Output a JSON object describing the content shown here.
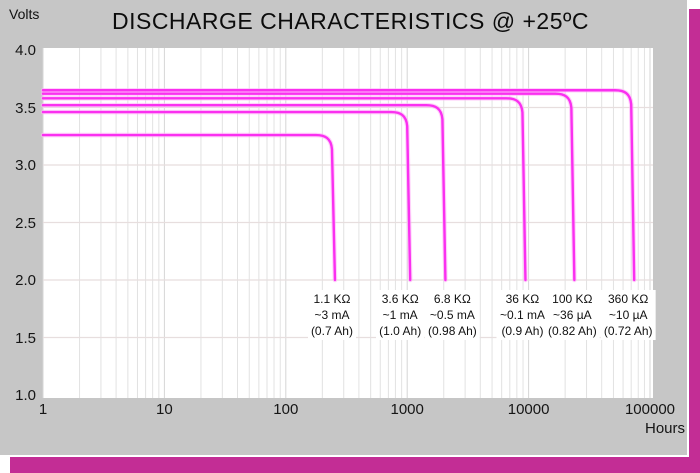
{
  "panel": {
    "bg": "#c6c6c6",
    "shadow_color": "#c32d95"
  },
  "title": "DISCHARGE CHARACTERISTICS @ +25ºC",
  "y_axis_label": "Volts",
  "x_axis_label": "Hours",
  "chart_data": {
    "type": "line",
    "title": "DISCHARGE CHARACTERISTICS @ +25ºC",
    "xlabel": "Hours",
    "ylabel": "Volts",
    "x_scale": "log",
    "xlim": [
      1,
      100000
    ],
    "ylim": [
      1.0,
      4.0
    ],
    "grid": true,
    "line_color": "#fa30f0",
    "line_halo_color": "#ffb4f8",
    "grid_v_color": "#e2e2e2",
    "grid_v_major_color": "#d6d6d6",
    "grid_h_color": "#e7dede",
    "y_ticks": [
      {
        "label": "4.0",
        "v": 4.0
      },
      {
        "label": "3.5",
        "v": 3.5
      },
      {
        "label": "3.0",
        "v": 3.0
      },
      {
        "label": "2.5",
        "v": 2.5
      },
      {
        "label": "2.0",
        "v": 2.0
      },
      {
        "label": "1.5",
        "v": 1.5
      },
      {
        "label": "1.0",
        "v": 1.0
      }
    ],
    "x_ticks": [
      {
        "label": "1",
        "t": 1
      },
      {
        "label": "10",
        "t": 10
      },
      {
        "label": "100",
        "t": 100
      },
      {
        "label": "1000",
        "t": 1000
      },
      {
        "label": "10000",
        "t": 10000
      },
      {
        "label": "100000",
        "t": 100000
      }
    ],
    "series": [
      {
        "name": "1.1 KΩ",
        "label_lines": [
          "1.1 KΩ",
          "~3 mA",
          "(0.7 Ah)"
        ],
        "plateau_volts": 3.26,
        "cutoff_hours": 240,
        "end_volts": 2.0
      },
      {
        "name": "3.6 KΩ",
        "label_lines": [
          "3.6 KΩ",
          "~1 mA",
          "(1.0 Ah)"
        ],
        "plateau_volts": 3.46,
        "cutoff_hours": 1000,
        "end_volts": 2.0
      },
      {
        "name": "6.8 KΩ",
        "label_lines": [
          "6.8 KΩ",
          "~0.5 mA",
          "(0.98 Ah)"
        ],
        "plateau_volts": 3.52,
        "cutoff_hours": 1950,
        "end_volts": 2.0
      },
      {
        "name": "36 KΩ",
        "label_lines": [
          "36 KΩ",
          "~0.1 mA",
          "(0.9 Ah)"
        ],
        "plateau_volts": 3.58,
        "cutoff_hours": 8900,
        "end_volts": 2.0
      },
      {
        "name": "100 KΩ",
        "label_lines": [
          "100 KΩ",
          "~36 µA",
          "(0.82 Ah)"
        ],
        "plateau_volts": 3.62,
        "cutoff_hours": 22500,
        "end_volts": 2.0
      },
      {
        "name": "360 KΩ",
        "label_lines": [
          "360 KΩ",
          "~10 µA",
          "(0.72 Ah)"
        ],
        "plateau_volts": 3.65,
        "cutoff_hours": 70000,
        "end_volts": 2.0
      }
    ]
  }
}
